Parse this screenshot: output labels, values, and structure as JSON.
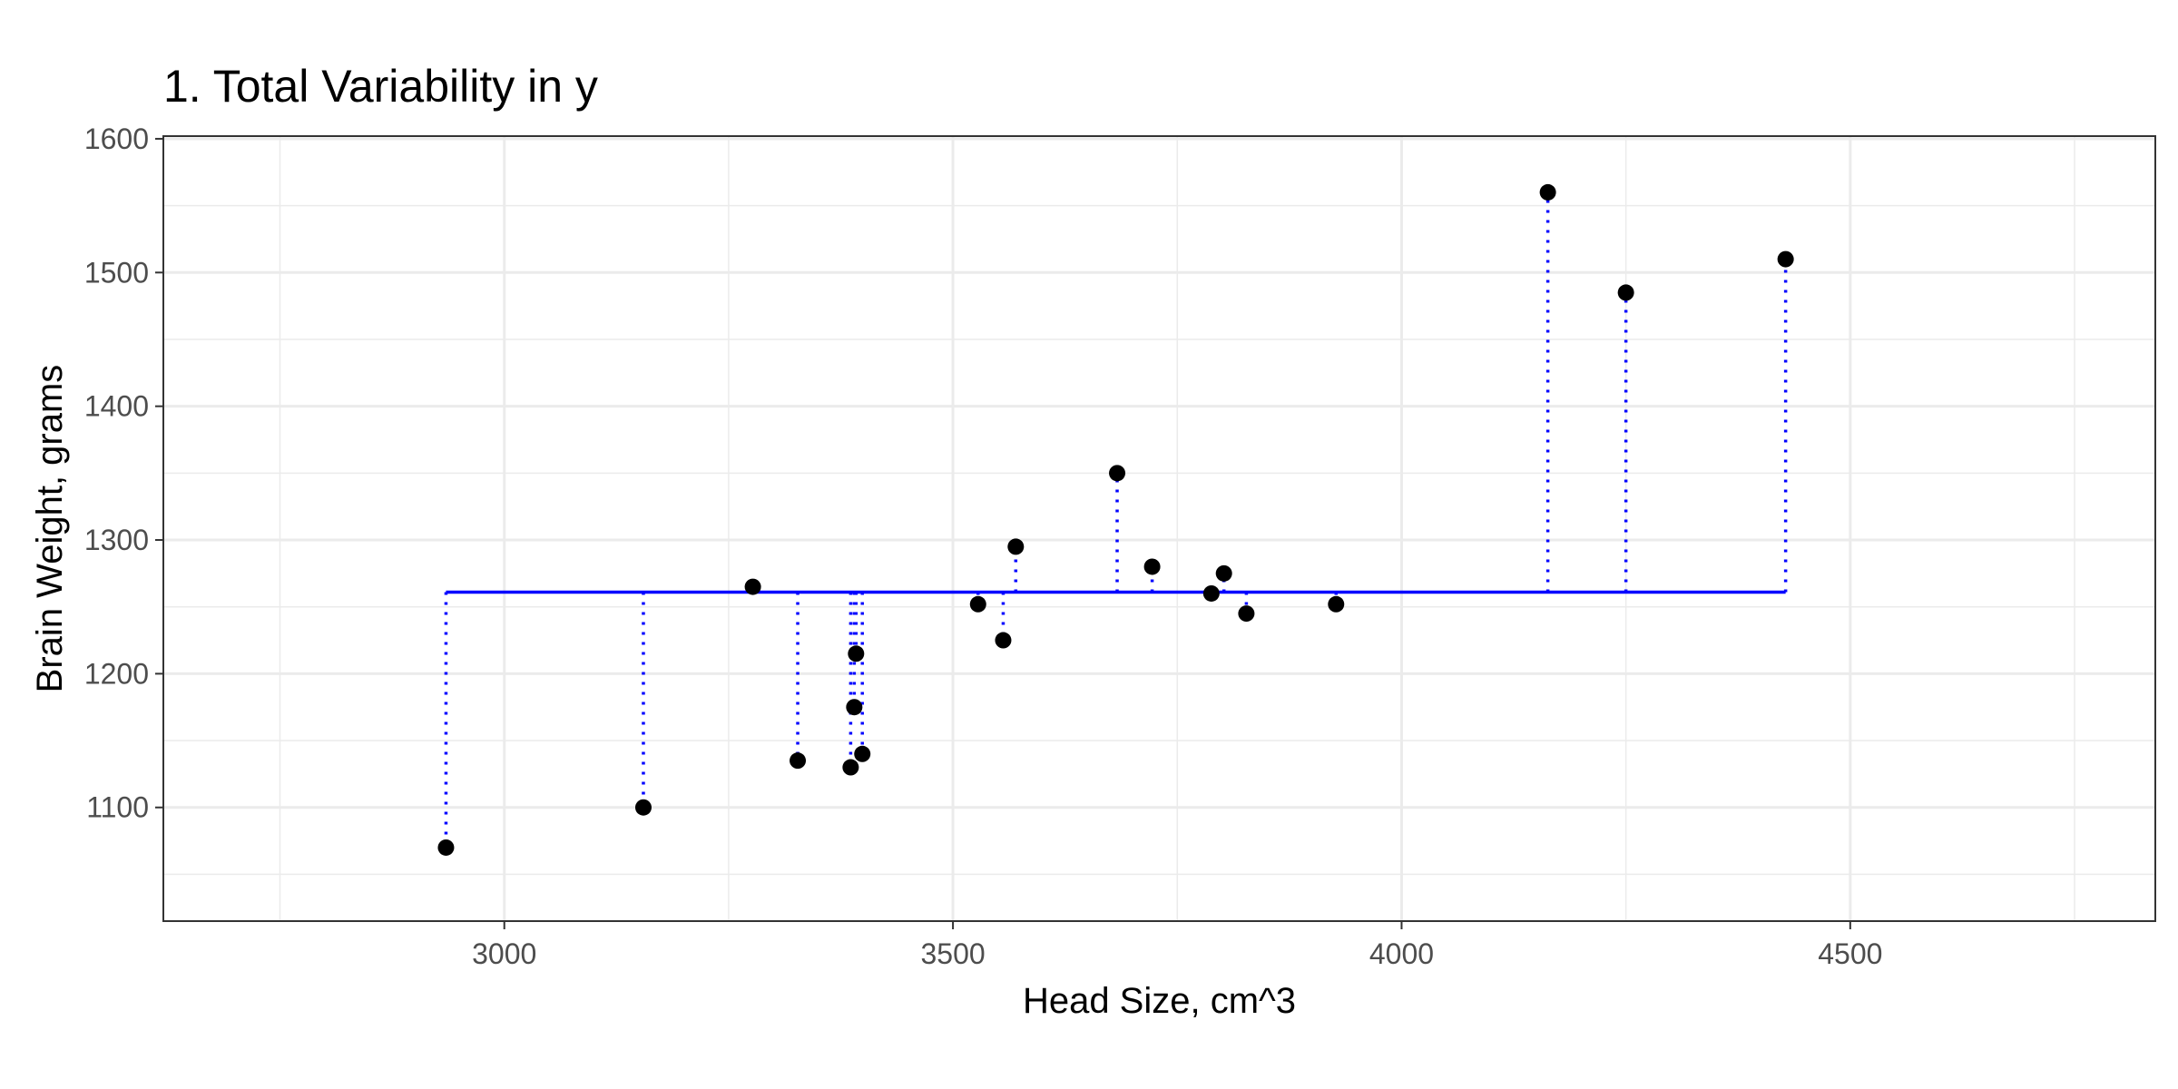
{
  "chart_data": {
    "type": "scatter",
    "title": "1. Total Variability in y",
    "xlabel": "Head Size, cm^3",
    "ylabel": "Brain Weight, grams",
    "xlim": [
      2620,
      4840
    ],
    "ylim": [
      1015,
      1602
    ],
    "x_ticks": [
      3000,
      3500,
      4000,
      4500
    ],
    "y_ticks": [
      1100,
      1200,
      1300,
      1400,
      1500,
      1600
    ],
    "grid": true,
    "mean_y": 1261,
    "colors": {
      "points": "#000000",
      "mean_line": "#0000ff",
      "deviation_lines": "#0000ff",
      "grid": "#ebebeb",
      "panel_border": "#333333"
    },
    "points": [
      {
        "x": 2935,
        "y": 1070
      },
      {
        "x": 3155,
        "y": 1100
      },
      {
        "x": 3277,
        "y": 1265
      },
      {
        "x": 3327,
        "y": 1135
      },
      {
        "x": 3386,
        "y": 1130
      },
      {
        "x": 3390,
        "y": 1175
      },
      {
        "x": 3392,
        "y": 1215
      },
      {
        "x": 3399,
        "y": 1140
      },
      {
        "x": 3528,
        "y": 1252
      },
      {
        "x": 3556,
        "y": 1225
      },
      {
        "x": 3570,
        "y": 1295
      },
      {
        "x": 3683,
        "y": 1350
      },
      {
        "x": 3722,
        "y": 1280
      },
      {
        "x": 3788,
        "y": 1260
      },
      {
        "x": 3802,
        "y": 1275
      },
      {
        "x": 3827,
        "y": 1245
      },
      {
        "x": 3927,
        "y": 1252
      },
      {
        "x": 4163,
        "y": 1560
      },
      {
        "x": 4250,
        "y": 1485
      },
      {
        "x": 4428,
        "y": 1510
      }
    ]
  }
}
